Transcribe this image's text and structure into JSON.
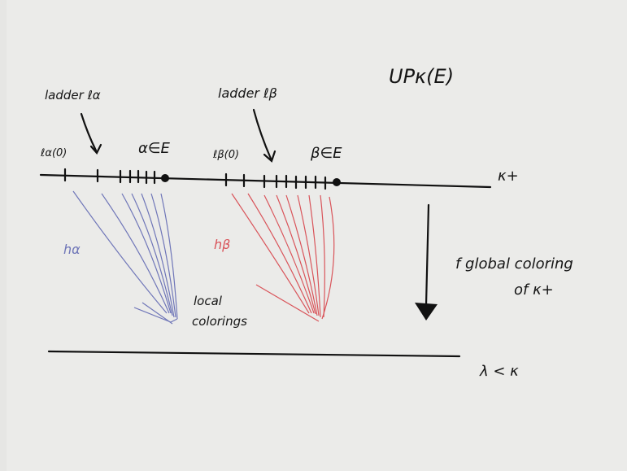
{
  "title": "UPκ(E)",
  "labels": {
    "ladder_alpha": "ladder ℓα",
    "ladder_beta": "ladder ℓβ",
    "l_alpha_0": "ℓα(0)",
    "alpha_in_E": "α∈E",
    "l_beta_0": "ℓβ(0)",
    "beta_in_E": "β∈E",
    "kappa_plus": "κ+",
    "h_alpha": "hα",
    "h_beta": "hβ",
    "local_colorings": [
      "local",
      "colorings"
    ],
    "global_coloring": [
      "f global coloring",
      "of κ+"
    ],
    "lambda_less_kappa": "λ < κ"
  }
}
